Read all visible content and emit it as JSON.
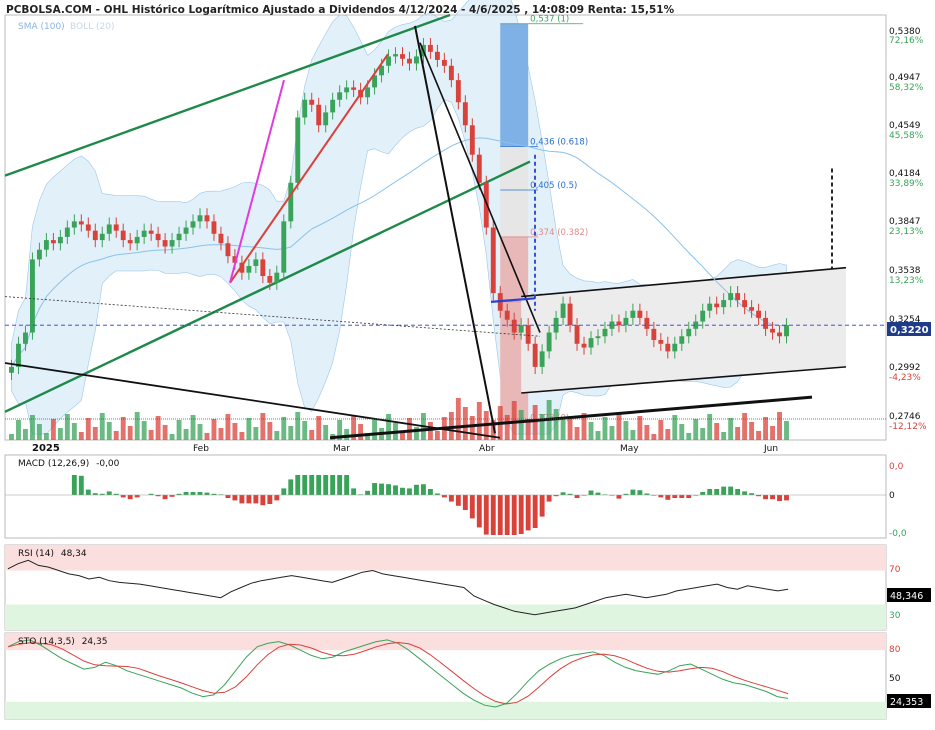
{
  "header": {
    "title": "PCBOLSA.COM - OHL Histórico Logarítmico Ajustado a Dividendos 4/12/2024 - 4/6/2025 , 14:08:09 Renta: 15,51%",
    "indicators_label_sma": "SMA (100)",
    "indicators_label_boll": "BOLL (20)"
  },
  "colors": {
    "up": "#3aa35a",
    "down": "#d9413b",
    "channel_green": "#1e8a4a",
    "fib_blue": "#2a6fd6",
    "band_fill": "#cfe6f5",
    "current_price_bg": "#1f3c88"
  },
  "chart_data": [
    {
      "type": "candlestick",
      "name": "price",
      "scale": "log",
      "x_ticks": [
        "2025",
        "Feb",
        "Mar",
        "Abr",
        "May",
        "Jun"
      ],
      "y_ticks": [
        {
          "price": "0,5380",
          "pct": "72,16%"
        },
        {
          "price": "0,4947",
          "pct": "58,32%"
        },
        {
          "price": "0,4549",
          "pct": "45,58%"
        },
        {
          "price": "0,4184",
          "pct": "33,89%"
        },
        {
          "price": "0,3847",
          "pct": "23,13%"
        },
        {
          "price": "0,3538",
          "pct": "13,23%"
        },
        {
          "price": "0,3254",
          "pct": ""
        },
        {
          "price": "0,2992",
          "pct": "-4,23%"
        },
        {
          "price": "0,2746",
          "pct": "-12,12%"
        }
      ],
      "current_price": "0,3220",
      "ylim": [
        0.265,
        0.545
      ],
      "fibonacci": [
        {
          "label": "0,537 (1)",
          "value": 0.537
        },
        {
          "label": "0,436 (0.618)",
          "value": 0.436
        },
        {
          "label": "0,405 (0.5)",
          "value": 0.405
        },
        {
          "label": "0,374 (0.382)",
          "value": 0.374
        },
        {
          "label": "0,335 (0.236)",
          "value": 0.335
        },
        {
          "label": "0,273 (0)",
          "value": 0.273
        }
      ],
      "close": [
        0.3,
        0.312,
        0.318,
        0.36,
        0.366,
        0.372,
        0.37,
        0.374,
        0.38,
        0.384,
        0.382,
        0.378,
        0.372,
        0.376,
        0.382,
        0.378,
        0.372,
        0.37,
        0.374,
        0.378,
        0.376,
        0.372,
        0.368,
        0.372,
        0.376,
        0.38,
        0.384,
        0.388,
        0.384,
        0.376,
        0.37,
        0.362,
        0.358,
        0.352,
        0.356,
        0.36,
        0.35,
        0.346,
        0.352,
        0.384,
        0.41,
        0.458,
        0.472,
        0.468,
        0.452,
        0.462,
        0.472,
        0.478,
        0.482,
        0.48,
        0.474,
        0.482,
        0.492,
        0.5,
        0.508,
        0.51,
        0.506,
        0.502,
        0.508,
        0.518,
        0.512,
        0.505,
        0.5,
        0.488,
        0.47,
        0.452,
        0.43,
        0.41,
        0.38,
        0.34,
        0.33,
        0.325,
        0.318,
        0.322,
        0.312,
        0.3,
        0.308,
        0.318,
        0.326,
        0.334,
        0.322,
        0.312,
        0.31,
        0.315,
        0.316,
        0.32,
        0.324,
        0.322,
        0.326,
        0.33,
        0.326,
        0.32,
        0.314,
        0.312,
        0.308,
        0.312,
        0.316,
        0.32,
        0.324,
        0.33,
        0.334,
        0.332,
        0.336,
        0.34,
        0.336,
        0.332,
        0.33,
        0.326,
        0.32,
        0.318,
        0.316,
        0.322
      ],
      "sma100_label": "SMA (100)",
      "boll_label": "BOLL (20)"
    },
    {
      "type": "bar+line",
      "name": "MACD (12,26,9)",
      "value_label": "-0,00",
      "y_ticks": [
        "0,0",
        "0",
        "-0,0"
      ]
    },
    {
      "type": "line",
      "name": "RSI (14)",
      "value_label": "48,34",
      "current": "48,346",
      "y_ticks": [
        "70",
        "30"
      ],
      "ylim": [
        0,
        100
      ],
      "values": [
        72,
        78,
        82,
        76,
        74,
        70,
        66,
        64,
        60,
        62,
        58,
        56,
        55,
        54,
        52,
        50,
        48,
        46,
        44,
        42,
        40,
        38,
        45,
        50,
        55,
        58,
        60,
        62,
        64,
        62,
        60,
        58,
        56,
        60,
        64,
        68,
        70,
        66,
        64,
        62,
        60,
        58,
        56,
        54,
        52,
        50,
        40,
        35,
        30,
        26,
        22,
        20,
        18,
        20,
        22,
        24,
        26,
        30,
        34,
        38,
        40,
        42,
        40,
        38,
        40,
        42,
        46,
        48,
        50,
        52,
        54,
        50,
        48,
        52,
        50,
        48,
        46,
        48
      ],
      "value_number": 48.346
    },
    {
      "type": "line",
      "name": "STO (14,3,5)",
      "value_label": "24,35",
      "current": "24,353",
      "y_ticks": [
        "80",
        "50"
      ],
      "ylim": [
        0,
        100
      ],
      "k_values": [
        84,
        90,
        92,
        86,
        78,
        70,
        64,
        58,
        60,
        66,
        62,
        56,
        52,
        48,
        44,
        40,
        36,
        30,
        26,
        28,
        40,
        56,
        72,
        84,
        88,
        90,
        86,
        80,
        74,
        70,
        72,
        78,
        82,
        86,
        90,
        92,
        88,
        80,
        70,
        60,
        50,
        40,
        30,
        22,
        16,
        14,
        18,
        30,
        44,
        56,
        64,
        70,
        74,
        76,
        78,
        74,
        66,
        60,
        56,
        54,
        52,
        56,
        62,
        64,
        58,
        52,
        46,
        42,
        40,
        36,
        32,
        26,
        24
      ],
      "value_number": 24.353
    }
  ]
}
